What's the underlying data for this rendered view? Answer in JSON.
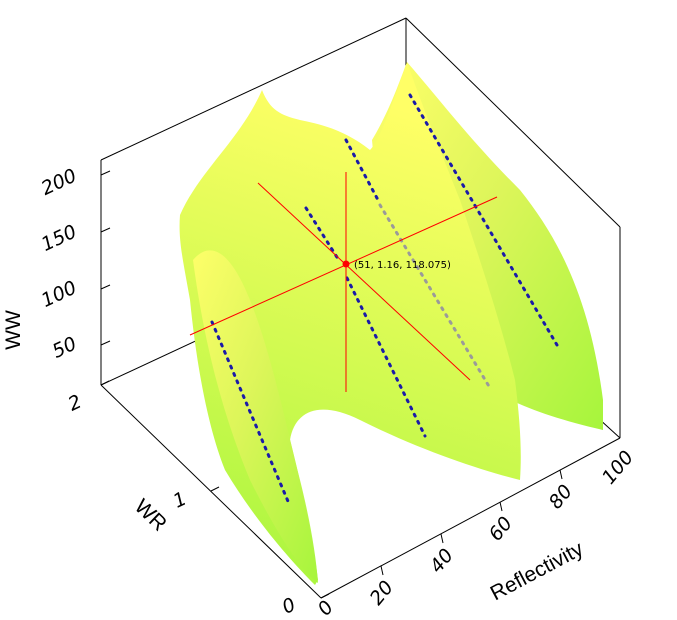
{
  "chart_data": {
    "type": "surface",
    "surface_gradient": [
      "#a6f53c",
      "#ffff66"
    ],
    "crosshair_color": "#ff0000",
    "marker_color": "#1a1aa8",
    "axes": {
      "x": {
        "label": "Reflectivity",
        "range": [
          0,
          100
        ],
        "ticks": [
          "0",
          "20",
          "40",
          "60",
          "80",
          "100"
        ]
      },
      "y": {
        "label": "WR",
        "range": [
          0,
          2
        ],
        "ticks": [
          "0",
          "1",
          "2"
        ]
      },
      "z": {
        "label": "WW",
        "range": [
          0,
          220
        ],
        "ticks": [
          "50",
          "100",
          "150",
          "200"
        ]
      }
    },
    "crosshair_point": {
      "x": 51,
      "y": 1.16,
      "z": 118.075,
      "label": "(51, 1.16, 118.075)"
    },
    "surface_ridges": [
      {
        "x": 2,
        "z_low": 80,
        "z_high": 180
      },
      {
        "x": 50,
        "z_low": 90,
        "z_high": 200
      },
      {
        "x": 98,
        "z_low": 80,
        "z_high": 215
      }
    ],
    "dotted_series_count": 4
  }
}
